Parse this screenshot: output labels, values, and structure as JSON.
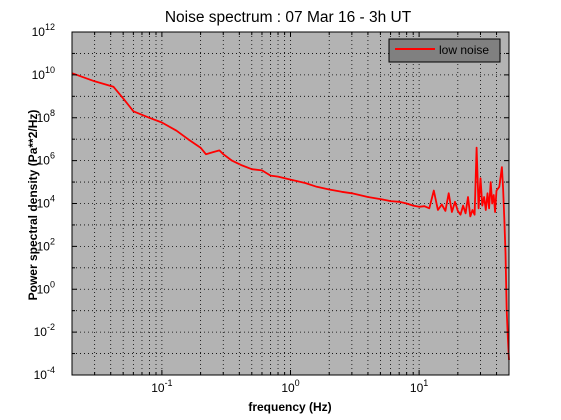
{
  "chart_data": {
    "type": "line",
    "title": "Noise spectrum : 07 Mar 16 - 3h UT",
    "xlabel": "frequency (Hz)",
    "ylabel": "Power spectral density (Pa**2/Hz)",
    "x_scale": "log",
    "y_scale": "log",
    "xlim": [
      0.02,
      50
    ],
    "ylim": [
      0.0001,
      1000000000000
    ],
    "grid": true,
    "legend_position": "top-right",
    "x_ticks": [
      {
        "value": 0.1,
        "base": "10",
        "exp": "-1"
      },
      {
        "value": 1,
        "base": "10",
        "exp": "0"
      },
      {
        "value": 10,
        "base": "10",
        "exp": "1"
      }
    ],
    "y_ticks": [
      {
        "value": 0.0001,
        "base": "10",
        "exp": "-4"
      },
      {
        "value": 0.01,
        "base": "10",
        "exp": "-2"
      },
      {
        "value": 1,
        "base": "10",
        "exp": "0"
      },
      {
        "value": 100,
        "base": "10",
        "exp": "2"
      },
      {
        "value": 10000,
        "base": "10",
        "exp": "4"
      },
      {
        "value": 1000000,
        "base": "10",
        "exp": "6"
      },
      {
        "value": 100000000,
        "base": "10",
        "exp": "8"
      },
      {
        "value": 10000000000,
        "base": "10",
        "exp": "10"
      },
      {
        "value": 1000000000000,
        "base": "10",
        "exp": "12"
      }
    ],
    "colors": {
      "plot_background": "#b3b3b3",
      "line": "#ff0000",
      "legend_background": "#808080"
    },
    "series": [
      {
        "name": "low noise",
        "x": [
          0.02,
          0.03,
          0.042,
          0.05,
          0.06,
          0.08,
          0.1,
          0.13,
          0.16,
          0.2,
          0.22,
          0.25,
          0.28,
          0.3,
          0.35,
          0.42,
          0.5,
          0.6,
          0.7,
          0.8,
          1.0,
          1.3,
          1.6,
          2.0,
          2.5,
          3.0,
          4.0,
          5.0,
          6.0,
          7.0,
          8.0,
          9.0,
          10.0,
          11.0,
          12.0,
          13.0,
          14.0,
          15.0,
          16.0,
          17.0,
          18.0,
          19.0,
          20.0,
          21.0,
          22.0,
          23.0,
          24.0,
          25.0,
          26.0,
          27.0,
          28.0,
          29.0,
          30.0,
          31.0,
          32.0,
          33.0,
          34.0,
          35.0,
          36.0,
          37.0,
          38.0,
          39.0,
          40.0,
          42.0,
          44.0,
          45.0,
          46.0,
          47.0,
          48.0,
          49.0,
          50.0
        ],
        "y": [
          12000000000,
          5000000000,
          2800000000,
          800000000,
          200000000,
          100000000,
          60000000,
          25000000,
          10000000,
          4000000,
          2000000,
          2500000,
          3000000,
          2000000,
          1000000,
          600000,
          400000,
          350000,
          200000,
          180000,
          130000,
          90000,
          60000,
          45000,
          35000,
          30000,
          20000,
          16000,
          13000,
          12000,
          10000,
          8000,
          7000,
          7500,
          6000,
          40000,
          5000,
          9000,
          4500,
          30000,
          4000,
          12000,
          4500,
          3000,
          8000,
          3500,
          20000,
          2500,
          5000,
          3000,
          4000000,
          6000,
          150000,
          8000,
          20000,
          5000,
          30000,
          6000,
          100000,
          10000,
          25000,
          4000,
          40000,
          60000,
          500000,
          50000,
          2000,
          50,
          0.1,
          0.005,
          0.0005
        ]
      }
    ]
  }
}
